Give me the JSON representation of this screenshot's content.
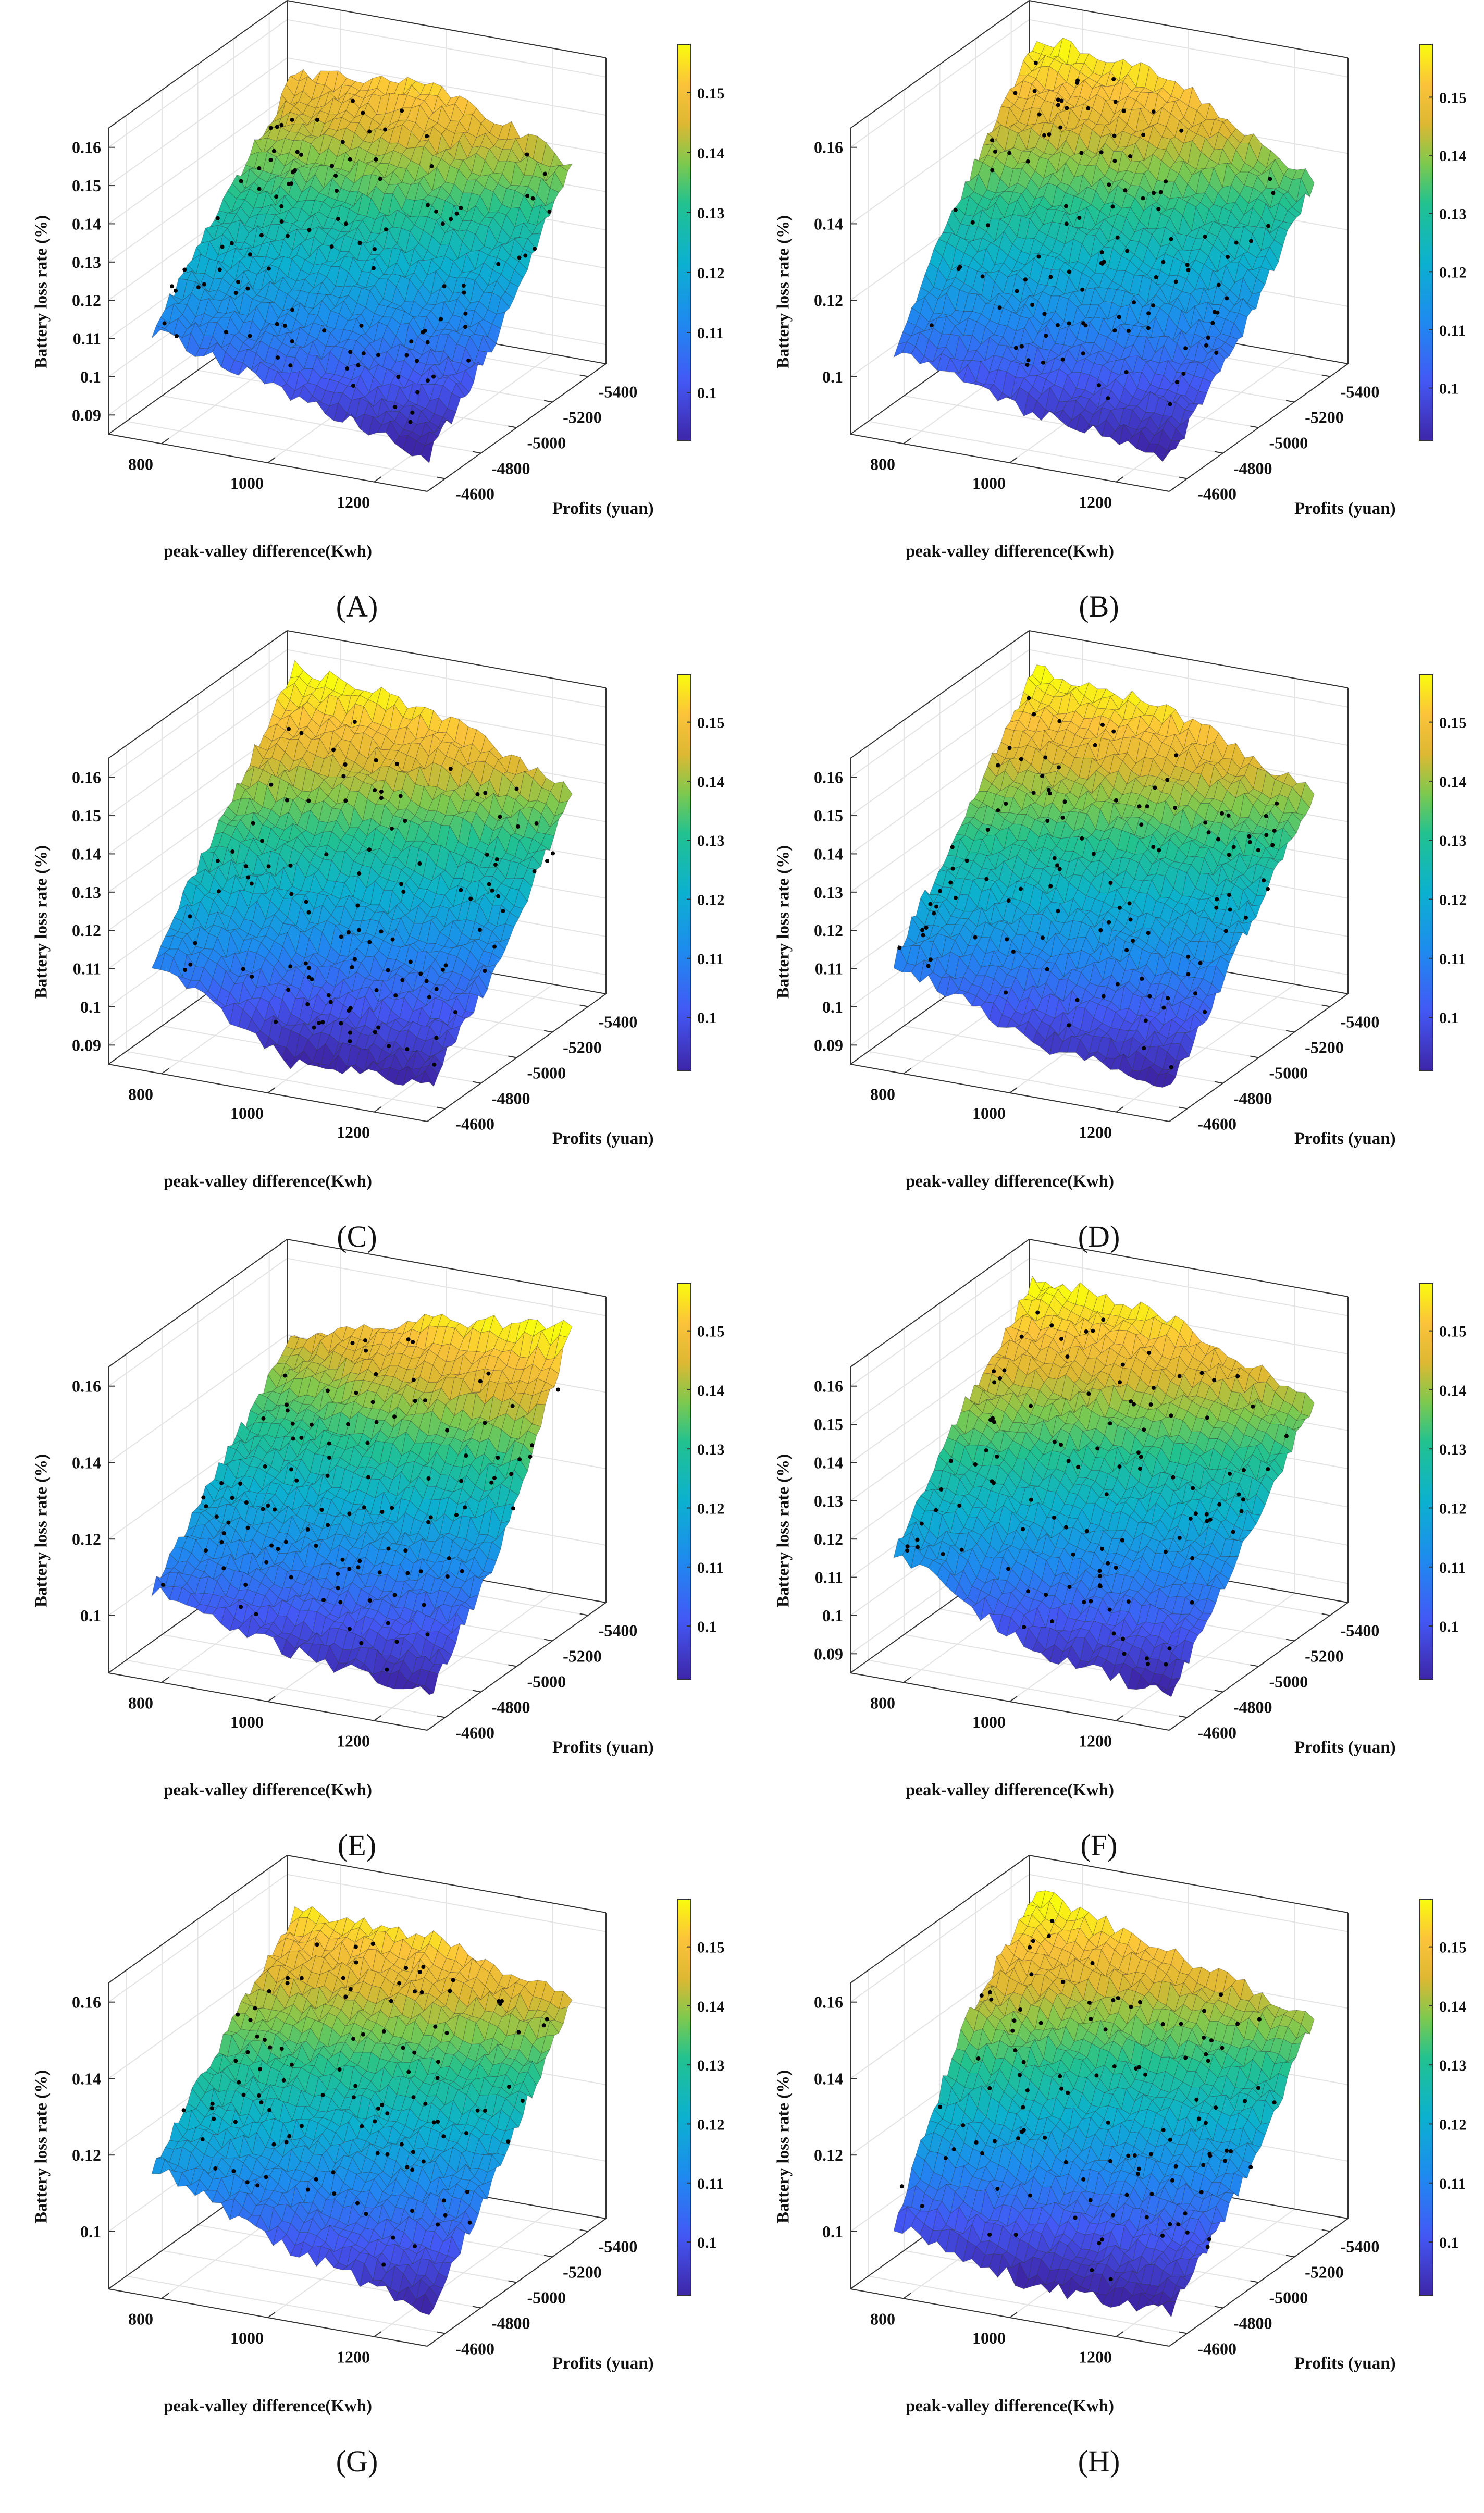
{
  "chart_data": [
    {
      "panel": "(A)",
      "type": "surface",
      "zlabel": "Battery loss rate (%)",
      "xlabel": "peak-valley difference(Kwh)",
      "ylabel": "Profits (yuan)",
      "x_ticks": [
        800,
        1000,
        1200
      ],
      "y_ticks": [
        -4600,
        -4800,
        -5000,
        -5200,
        -5400
      ],
      "z_ticks": [
        0.09,
        0.1,
        0.11,
        0.12,
        0.13,
        0.14,
        0.15,
        0.16
      ],
      "colorbar_ticks": [
        0.1,
        0.11,
        0.12,
        0.13,
        0.14,
        0.15
      ],
      "colorbar_range": [
        0.092,
        0.158
      ],
      "grid_x": [
        750,
        1000,
        1250
      ],
      "grid_y": [
        -4600,
        -5000,
        -5400
      ],
      "z_grid": [
        [
          0.11,
          0.13,
          0.15
        ],
        [
          0.1,
          0.125,
          0.155
        ],
        [
          0.09,
          0.11,
          0.14
        ]
      ]
    },
    {
      "panel": "(B)",
      "type": "surface",
      "zlabel": "Battery loss rate (%)",
      "xlabel": "peak-valley difference(Kwh)",
      "ylabel": "Profits (yuan)",
      "x_ticks": [
        800,
        1000,
        1200
      ],
      "y_ticks": [
        -4600,
        -4800,
        -5000,
        -5200,
        -5400
      ],
      "z_ticks": [
        0.1,
        0.12,
        0.14,
        0.16
      ],
      "colorbar_ticks": [
        0.1,
        0.11,
        0.12,
        0.13,
        0.14,
        0.15
      ],
      "colorbar_range": [
        0.091,
        0.159
      ],
      "grid_x": [
        750,
        1000,
        1250
      ],
      "grid_y": [
        -4600,
        -5000,
        -5400
      ],
      "z_grid": [
        [
          0.105,
          0.135,
          0.16
        ],
        [
          0.095,
          0.125,
          0.155
        ],
        [
          0.09,
          0.11,
          0.135
        ]
      ]
    },
    {
      "panel": "(C)",
      "type": "surface",
      "zlabel": "Battery loss rate (%)",
      "xlabel": "peak-valley difference(Kwh)",
      "ylabel": "Profits (yuan)",
      "x_ticks": [
        800,
        1000,
        1200
      ],
      "y_ticks": [
        -4600,
        -4800,
        -5000,
        -5200,
        -5400
      ],
      "z_ticks": [
        0.09,
        0.1,
        0.11,
        0.12,
        0.13,
        0.14,
        0.15,
        0.16
      ],
      "colorbar_ticks": [
        0.1,
        0.11,
        0.12,
        0.13,
        0.14,
        0.15
      ],
      "colorbar_range": [
        0.091,
        0.158
      ],
      "grid_x": [
        750,
        1000,
        1250
      ],
      "grid_y": [
        -4600,
        -5000,
        -5400
      ],
      "z_grid": [
        [
          0.11,
          0.135,
          0.16
        ],
        [
          0.09,
          0.12,
          0.155
        ],
        [
          0.09,
          0.11,
          0.14
        ]
      ]
    },
    {
      "panel": "(D)",
      "type": "surface",
      "zlabel": "Battery loss rate (%)",
      "xlabel": "peak-valley difference(Kwh)",
      "ylabel": "Profits (yuan)",
      "x_ticks": [
        800,
        1000,
        1200
      ],
      "y_ticks": [
        -4600,
        -4800,
        -5000,
        -5200,
        -5400
      ],
      "z_ticks": [
        0.09,
        0.1,
        0.11,
        0.12,
        0.13,
        0.14,
        0.15,
        0.16
      ],
      "colorbar_ticks": [
        0.1,
        0.11,
        0.12,
        0.13,
        0.14,
        0.15
      ],
      "colorbar_range": [
        0.091,
        0.158
      ],
      "grid_x": [
        750,
        1000,
        1250
      ],
      "grid_y": [
        -4600,
        -5000,
        -5400
      ],
      "z_grid": [
        [
          0.11,
          0.135,
          0.16
        ],
        [
          0.095,
          0.125,
          0.155
        ],
        [
          0.09,
          0.115,
          0.14
        ]
      ]
    },
    {
      "panel": "(E)",
      "type": "surface",
      "zlabel": "Battery loss rate (%)",
      "xlabel": "peak-valley difference(Kwh)",
      "ylabel": "Profits (yuan)",
      "x_ticks": [
        800,
        1000,
        1200
      ],
      "y_ticks": [
        -4600,
        -4800,
        -5000,
        -5200,
        -5400
      ],
      "z_ticks": [
        0.1,
        0.12,
        0.14,
        0.16
      ],
      "colorbar_ticks": [
        0.1,
        0.11,
        0.12,
        0.13,
        0.14,
        0.15
      ],
      "colorbar_range": [
        0.091,
        0.158
      ],
      "grid_x": [
        750,
        1000,
        1250
      ],
      "grid_y": [
        -4600,
        -5000,
        -5400
      ],
      "z_grid": [
        [
          0.105,
          0.125,
          0.145
        ],
        [
          0.095,
          0.12,
          0.155
        ],
        [
          0.09,
          0.115,
          0.16
        ]
      ]
    },
    {
      "panel": "(F)",
      "type": "surface",
      "zlabel": "Battery loss rate (%)",
      "xlabel": "peak-valley difference(Kwh)",
      "ylabel": "Profits (yuan)",
      "x_ticks": [
        800,
        1000,
        1200
      ],
      "y_ticks": [
        -4600,
        -4800,
        -5000,
        -5200,
        -5400
      ],
      "z_ticks": [
        0.09,
        0.1,
        0.11,
        0.12,
        0.13,
        0.14,
        0.15,
        0.16
      ],
      "colorbar_ticks": [
        0.1,
        0.11,
        0.12,
        0.13,
        0.14,
        0.15
      ],
      "colorbar_range": [
        0.091,
        0.158
      ],
      "grid_x": [
        750,
        1000,
        1250
      ],
      "grid_y": [
        -4600,
        -5000,
        -5400
      ],
      "z_grid": [
        [
          0.115,
          0.14,
          0.16
        ],
        [
          0.095,
          0.125,
          0.155
        ],
        [
          0.09,
          0.115,
          0.14
        ]
      ]
    },
    {
      "panel": "(G)",
      "type": "surface",
      "zlabel": "Battery loss rate (%)",
      "xlabel": "peak-valley difference(Kwh)",
      "ylabel": "Profits (yuan)",
      "x_ticks": [
        800,
        1000,
        1200
      ],
      "y_ticks": [
        -4600,
        -4800,
        -5000,
        -5200,
        -5400
      ],
      "z_ticks": [
        0.1,
        0.12,
        0.14,
        0.16
      ],
      "colorbar_ticks": [
        0.1,
        0.11,
        0.12,
        0.13,
        0.14,
        0.15
      ],
      "colorbar_range": [
        0.091,
        0.158
      ],
      "grid_x": [
        750,
        1000,
        1250
      ],
      "grid_y": [
        -4600,
        -5000,
        -5400
      ],
      "z_grid": [
        [
          0.115,
          0.135,
          0.155
        ],
        [
          0.1,
          0.125,
          0.155
        ],
        [
          0.09,
          0.115,
          0.145
        ]
      ]
    },
    {
      "panel": "(H)",
      "type": "surface",
      "zlabel": "Battery loss rate (%)",
      "xlabel": "peak-valley difference(Kwh)",
      "ylabel": "Profits (yuan)",
      "x_ticks": [
        800,
        1000,
        1200
      ],
      "y_ticks": [
        -4600,
        -4800,
        -5000,
        -5200,
        -5400
      ],
      "z_ticks": [
        0.1,
        0.12,
        0.14,
        0.16
      ],
      "colorbar_ticks": [
        0.1,
        0.11,
        0.12,
        0.13,
        0.14,
        0.15
      ],
      "colorbar_range": [
        0.091,
        0.158
      ],
      "grid_x": [
        750,
        1000,
        1250
      ],
      "grid_y": [
        -4600,
        -5000,
        -5400
      ],
      "z_grid": [
        [
          0.1,
          0.14,
          0.16
        ],
        [
          0.09,
          0.12,
          0.15
        ],
        [
          0.09,
          0.11,
          0.14
        ]
      ]
    }
  ],
  "colormap": "parula",
  "marker_color": "#000000",
  "grid": true
}
